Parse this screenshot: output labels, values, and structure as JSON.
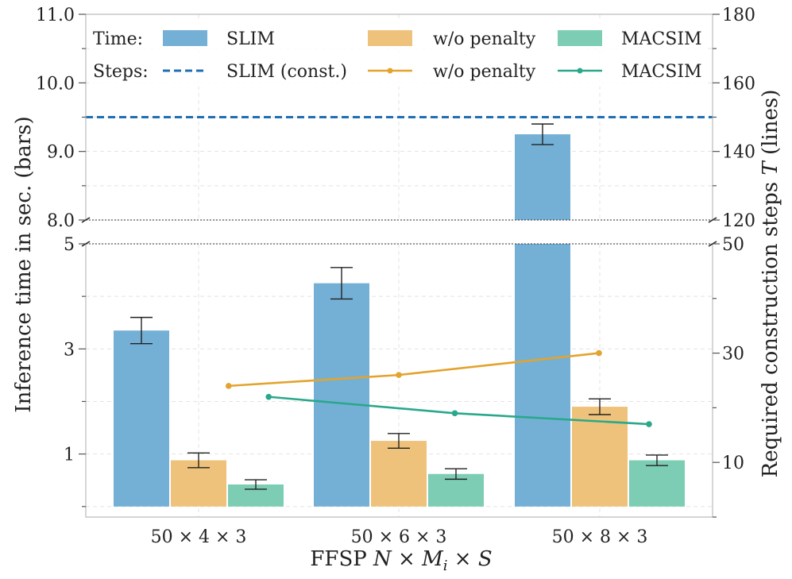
{
  "chart_data": {
    "type": "bar",
    "xlabel": "FFSP N × M_i × S",
    "xlabel_parts": {
      "prefix": "FFSP ",
      "n": "N",
      "times1": " × ",
      "m": "M",
      "m_sub": "i",
      "times2": " × ",
      "s": "S"
    },
    "ylabel_left": "Inference time in sec. (bars)",
    "ylabel_right_prefix": "Required construction steps ",
    "ylabel_right_var": "T",
    "ylabel_right_suffix": " (lines)",
    "categories": [
      "50 × 4 × 3",
      "50 × 6 × 3",
      "50 × 8 × 3"
    ],
    "left_axis": {
      "broken": true,
      "lower_range": [
        -0.2,
        5.0
      ],
      "upper_range": [
        8.0,
        11.0
      ],
      "lower_ticks": [
        {
          "value": 5,
          "label": "5"
        },
        {
          "value": 3,
          "label": "3"
        },
        {
          "value": 1,
          "label": "1"
        }
      ],
      "lower_minor_ticks": [
        4,
        2,
        0
      ],
      "upper_ticks": [
        {
          "value": 11.0,
          "label": "11.0"
        },
        {
          "value": 10.0,
          "label": "10.0"
        },
        {
          "value": 9.0,
          "label": "9.0"
        },
        {
          "value": 8.0,
          "label": "8.0"
        }
      ],
      "upper_minor_ticks": [
        10.5,
        9.5,
        8.5
      ]
    },
    "right_axis": {
      "broken": true,
      "lower_range": [
        0,
        50
      ],
      "upper_range": [
        120,
        180
      ],
      "lower_ticks": [
        {
          "value": 50,
          "label": "50"
        },
        {
          "value": 30,
          "label": "30"
        },
        {
          "value": 10,
          "label": "10"
        }
      ],
      "lower_minor_ticks": [
        40,
        20,
        0
      ],
      "upper_ticks": [
        {
          "value": 180,
          "label": "180"
        },
        {
          "value": 160,
          "label": "160"
        },
        {
          "value": 140,
          "label": "140"
        },
        {
          "value": 120,
          "label": "120"
        }
      ],
      "upper_minor_ticks": [
        170,
        150,
        130
      ]
    },
    "bar_series": [
      {
        "name": "SLIM",
        "color": "#74b0d6",
        "values": [
          3.35,
          4.25,
          9.25
        ],
        "errors": [
          0.25,
          0.3,
          0.15
        ]
      },
      {
        "name": "w/o penalty",
        "color": "#eec27a",
        "values": [
          0.88,
          1.25,
          1.9
        ],
        "errors": [
          0.14,
          0.14,
          0.15
        ]
      },
      {
        "name": "MACSIM",
        "color": "#7dcdb5",
        "values": [
          0.42,
          0.62,
          0.88
        ],
        "errors": [
          0.09,
          0.1,
          0.1
        ]
      }
    ],
    "line_series": [
      {
        "name": "SLIM (const.)",
        "color": "#1f6fb4",
        "style": "dashed",
        "constant": 150
      },
      {
        "name": "w/o penalty",
        "color": "#e3a32e",
        "style": "solid-marker",
        "x": [
          0.15,
          1.0,
          2.0
        ],
        "values": [
          24,
          26,
          30
        ]
      },
      {
        "name": "MACSIM",
        "color": "#2aa88b",
        "style": "solid-marker",
        "x": [
          0.35,
          1.28,
          2.25
        ],
        "values": [
          22,
          19,
          17
        ]
      }
    ],
    "legend": {
      "placement": "top",
      "time_label": "Time:",
      "steps_label": "Steps:"
    },
    "grid": true
  }
}
